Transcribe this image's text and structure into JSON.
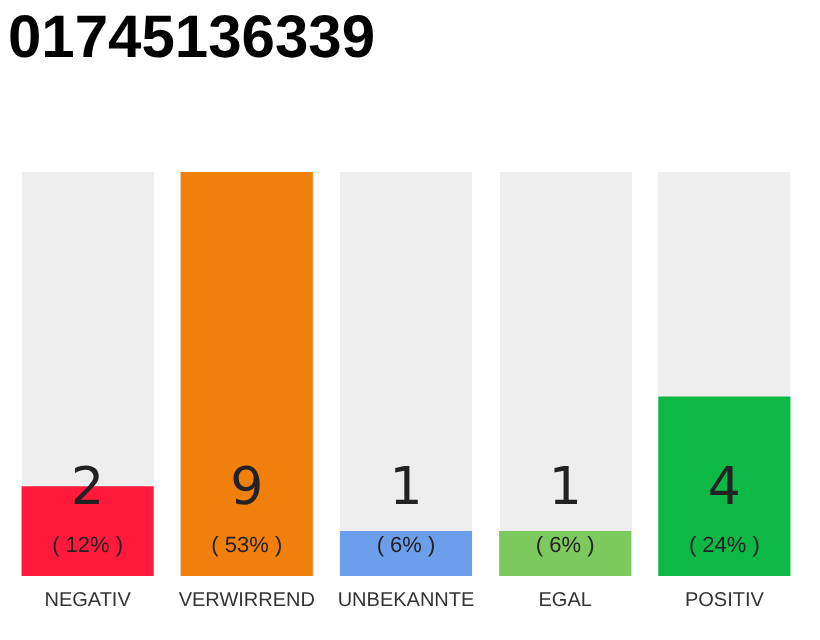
{
  "chart_data": {
    "type": "bar",
    "title": "01745136339",
    "categories": [
      "NEGATIV",
      "VERWIRREND",
      "UNBEKANNTE",
      "EGAL",
      "POSITIV"
    ],
    "values": [
      2,
      9,
      1,
      1,
      4
    ],
    "colors": [
      "#ff1a3c",
      "#f17f0c",
      "#6d9eeb",
      "#7dc95e",
      "#0cb846"
    ],
    "data_labels": true,
    "annotations": [
      "( 12% )",
      "( 53% )",
      "( 6% )",
      "( 6% )",
      "( 24% )"
    ],
    "grid": false,
    "legend": false
  }
}
